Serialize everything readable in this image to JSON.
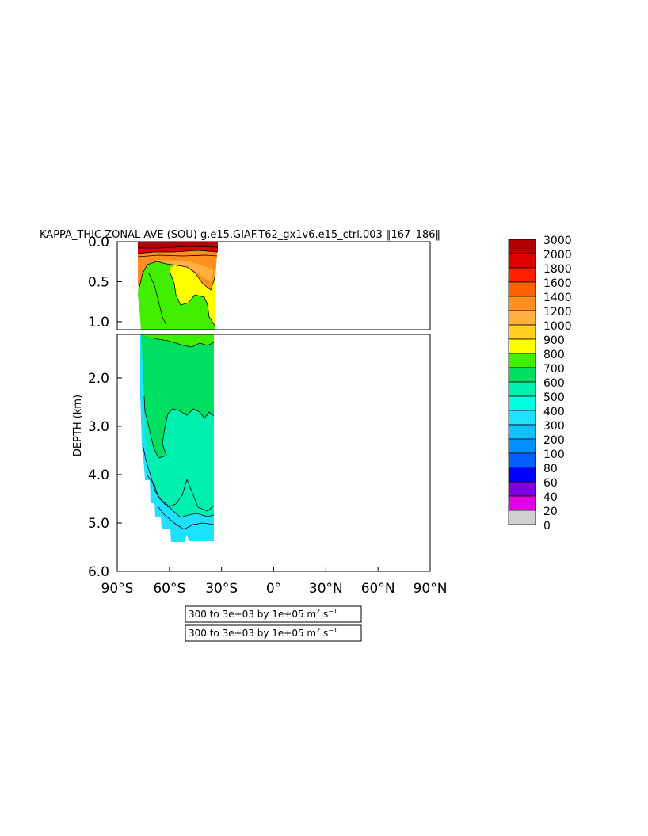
{
  "chart_data": {
    "type": "contour",
    "title": "KAPPA_THIC ZONAL-AVE (SOU) g.e15.GIAF.T62_gx1v6.e15_ctrl.003 ‖167–186‖",
    "xlabel": "",
    "ylabel": "DEPTH (km)",
    "x_ticks": [
      "90°S",
      "60°S",
      "30°S",
      "0°",
      "30°N",
      "60°N",
      "90°N"
    ],
    "x_tick_values": [
      -90,
      -60,
      -30,
      0,
      30,
      60,
      90
    ],
    "xlim": [
      -90,
      90
    ],
    "upper_panel": {
      "ylim": [
        0.0,
        1.1
      ],
      "y_ticks": [
        "0.0",
        "0.5",
        "1.0"
      ],
      "y_tick_values": [
        0.0,
        0.5,
        1.0
      ]
    },
    "lower_panel": {
      "ylim": [
        1.1,
        6.0
      ],
      "y_ticks": [
        "2.0",
        "3.0",
        "4.0",
        "5.0",
        "6.0"
      ],
      "y_tick_values": [
        2.0,
        3.0,
        4.0,
        5.0,
        6.0
      ]
    },
    "data_lat_range": [
      -78,
      -34
    ],
    "colorbar": {
      "levels": [
        "3000",
        "2000",
        "1800",
        "1600",
        "1400",
        "1200",
        "1000",
        "900",
        "800",
        "700",
        "600",
        "500",
        "400",
        "300",
        "200",
        "100",
        "80",
        "60",
        "40",
        "20",
        "0"
      ],
      "colors": [
        "#b20000",
        "#e00000",
        "#ff2000",
        "#ff6000",
        "#ff9020",
        "#ffb040",
        "#ffd020",
        "#ffff00",
        "#40f000",
        "#00e060",
        "#00f0b0",
        "#00ffe0",
        "#20e0ff",
        "#10c0ff",
        "#0090ff",
        "#0060ff",
        "#0000ff",
        "#8000e0",
        "#e000e0",
        "#d0d0d0",
        "#707070"
      ]
    },
    "bands": [
      {
        "panel": "upper",
        "color": "#b20000",
        "lat_range": [
          -76,
          -34
        ],
        "depth_range": [
          0.0,
          0.05
        ],
        "value_range": "2000–3000"
      },
      {
        "panel": "upper",
        "color": "#ff9020",
        "lat_range": [
          -76,
          -34
        ],
        "depth_range": [
          0.05,
          0.35
        ],
        "value_range": "1200–1800"
      },
      {
        "panel": "upper",
        "color": "#ffff00",
        "lat_range": [
          -62,
          -34
        ],
        "depth_range": [
          0.3,
          0.8
        ],
        "value_range": "800–900"
      },
      {
        "panel": "upper",
        "color": "#40f000",
        "lat_range": [
          -77,
          -34
        ],
        "depth_range": [
          0.3,
          1.1
        ],
        "value_range": "700–800"
      },
      {
        "panel": "lower",
        "color": "#00e060",
        "lat_range": [
          -76,
          -34
        ],
        "depth_range": [
          1.1,
          2.7
        ],
        "value_range": "600–700"
      },
      {
        "panel": "lower",
        "color": "#00f0b0",
        "lat_range": [
          -76,
          -34
        ],
        "depth_range": [
          2.5,
          4.9
        ],
        "value_range": "500–600"
      },
      {
        "panel": "lower",
        "color": "#20e0ff",
        "lat_range": [
          -76,
          -34
        ],
        "depth_range": [
          1.3,
          5.4
        ],
        "value_range": "400–500"
      }
    ]
  },
  "legend_boxes": [
    {
      "text": "300 to 3e+03 by 1e+05 m",
      "sup1": "2",
      "mid": " s",
      "sup2": "−1"
    },
    {
      "text": "300 to 3e+03 by 1e+05 m",
      "sup1": "2",
      "mid": " s",
      "sup2": "−1"
    }
  ]
}
